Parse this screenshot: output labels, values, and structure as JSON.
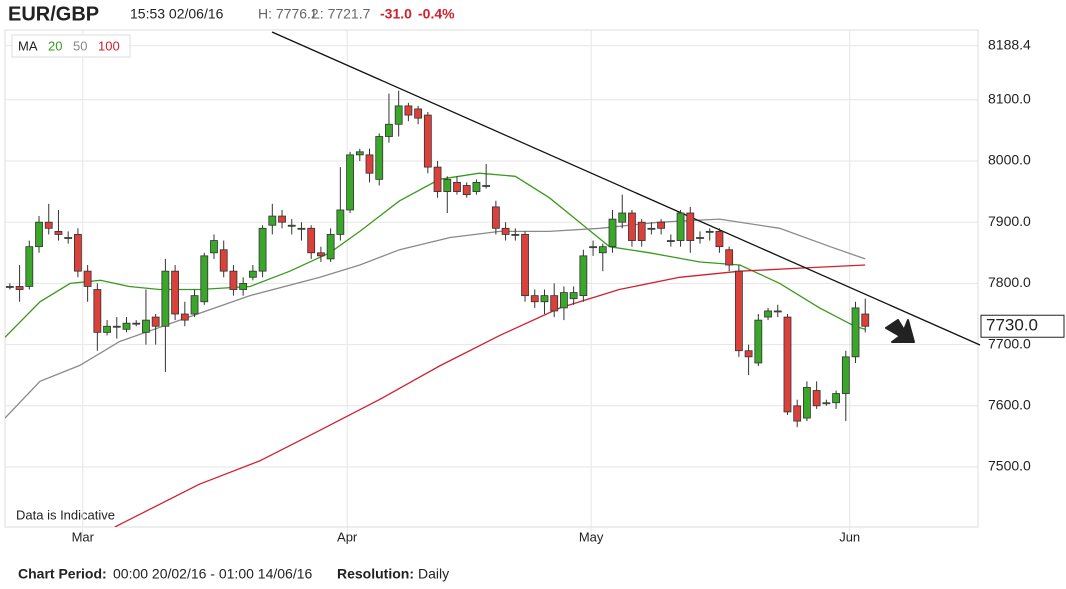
{
  "header": {
    "symbol": "EUR/GBP",
    "time": "15:53 02/06/16",
    "high": "H: 7776.2",
    "low": "L: 7721.7",
    "change": "-31.0",
    "change_pct": "-0.4%"
  },
  "footer": {
    "period_label": "Chart Period:",
    "period": "00:00 20/02/16 - 01:00 14/06/16",
    "resolution_label": "Resolution:",
    "resolution": "Daily"
  },
  "chart_data": {
    "type": "candlestick",
    "annotation": "Data is Indicative",
    "legend_title": "MA",
    "up_color": "#3aa62a",
    "down_color": "#d9413a",
    "xlim": [
      -0.5,
      99.6
    ],
    "xticks": [
      {
        "value": 7.5,
        "label": "Mar"
      },
      {
        "value": 34.7,
        "label": "Apr"
      },
      {
        "value": 59.8,
        "label": "May"
      },
      {
        "value": 86.4,
        "label": "Jun"
      }
    ],
    "ylim": [
      7402,
      8214
    ],
    "yticks": [
      {
        "value": 7500,
        "label": "7500.0"
      },
      {
        "value": 7600,
        "label": "7600.0"
      },
      {
        "value": 7700,
        "label": "7700.0"
      },
      {
        "value": 7800,
        "label": "7800.0"
      },
      {
        "value": 7900,
        "label": "7900.0"
      },
      {
        "value": 8000,
        "label": "8000.0"
      },
      {
        "value": 8100,
        "label": "8100.0"
      },
      8188.4
    ],
    "grid": true,
    "last_price": {
      "value": 7730,
      "label": "7730.0"
    },
    "candles": [
      {
        "open": 7795,
        "high": 7800,
        "low": 7790,
        "close": 7795
      },
      {
        "open": 7795,
        "high": 7830,
        "low": 7770,
        "close": 7790
      },
      {
        "open": 7795,
        "high": 7870,
        "low": 7790,
        "close": 7860
      },
      {
        "open": 7860,
        "high": 7910,
        "low": 7850,
        "close": 7900
      },
      {
        "open": 7900,
        "high": 7930,
        "low": 7880,
        "close": 7890
      },
      {
        "open": 7885,
        "high": 7920,
        "low": 7870,
        "close": 7880
      },
      {
        "open": 7875,
        "high": 7885,
        "low": 7865,
        "close": 7875
      },
      {
        "open": 7880,
        "high": 7890,
        "low": 7810,
        "close": 7820
      },
      {
        "open": 7820,
        "high": 7830,
        "low": 7770,
        "close": 7795
      },
      {
        "open": 7790,
        "high": 7800,
        "low": 7690,
        "close": 7720
      },
      {
        "open": 7720,
        "high": 7740,
        "low": 7715,
        "close": 7730
      },
      {
        "open": 7730,
        "high": 7745,
        "low": 7710,
        "close": 7730
      },
      {
        "open": 7725,
        "high": 7745,
        "low": 7720,
        "close": 7735
      },
      {
        "open": 7735,
        "high": 7740,
        "low": 7730,
        "close": 7735
      },
      {
        "open": 7720,
        "high": 7790,
        "low": 7700,
        "close": 7740
      },
      {
        "open": 7745,
        "high": 7750,
        "low": 7700,
        "close": 7730
      },
      {
        "open": 7730,
        "high": 7840,
        "low": 7655,
        "close": 7820
      },
      {
        "open": 7820,
        "high": 7830,
        "low": 7740,
        "close": 7750
      },
      {
        "open": 7750,
        "high": 7770,
        "low": 7730,
        "close": 7740
      },
      {
        "open": 7750,
        "high": 7790,
        "low": 7745,
        "close": 7780
      },
      {
        "open": 7770,
        "high": 7850,
        "low": 7765,
        "close": 7845
      },
      {
        "open": 7850,
        "high": 7880,
        "low": 7840,
        "close": 7870
      },
      {
        "open": 7855,
        "high": 7870,
        "low": 7810,
        "close": 7820
      },
      {
        "open": 7820,
        "high": 7830,
        "low": 7780,
        "close": 7790
      },
      {
        "open": 7790,
        "high": 7810,
        "low": 7780,
        "close": 7800
      },
      {
        "open": 7810,
        "high": 7830,
        "low": 7805,
        "close": 7820
      },
      {
        "open": 7820,
        "high": 7895,
        "low": 7810,
        "close": 7890
      },
      {
        "open": 7895,
        "high": 7930,
        "low": 7880,
        "close": 7910
      },
      {
        "open": 7910,
        "high": 7920,
        "low": 7890,
        "close": 7900
      },
      {
        "open": 7895,
        "high": 7905,
        "low": 7880,
        "close": 7895
      },
      {
        "open": 7890,
        "high": 7900,
        "low": 7870,
        "close": 7890
      },
      {
        "open": 7890,
        "high": 7895,
        "low": 7840,
        "close": 7850
      },
      {
        "open": 7850,
        "high": 7860,
        "low": 7835,
        "close": 7845
      },
      {
        "open": 7840,
        "high": 7890,
        "low": 7835,
        "close": 7880
      },
      {
        "open": 7880,
        "high": 7990,
        "low": 7870,
        "close": 7920
      },
      {
        "open": 7920,
        "high": 8015,
        "low": 7915,
        "close": 8010
      },
      {
        "open": 8010,
        "high": 8020,
        "low": 8000,
        "close": 8015
      },
      {
        "open": 8010,
        "high": 8020,
        "low": 7965,
        "close": 7980
      },
      {
        "open": 7970,
        "high": 8045,
        "low": 7960,
        "close": 8040
      },
      {
        "open": 8040,
        "high": 8110,
        "low": 8030,
        "close": 8060
      },
      {
        "open": 8060,
        "high": 8115,
        "low": 8040,
        "close": 8090
      },
      {
        "open": 8090,
        "high": 8095,
        "low": 8065,
        "close": 8075
      },
      {
        "open": 8085,
        "high": 8090,
        "low": 8060,
        "close": 8070
      },
      {
        "open": 8075,
        "high": 8080,
        "low": 7980,
        "close": 7990
      },
      {
        "open": 7990,
        "high": 8000,
        "low": 7940,
        "close": 7950
      },
      {
        "open": 7950,
        "high": 7975,
        "low": 7915,
        "close": 7970
      },
      {
        "open": 7965,
        "high": 7975,
        "low": 7945,
        "close": 7950
      },
      {
        "open": 7960,
        "high": 7965,
        "low": 7940,
        "close": 7945
      },
      {
        "open": 7950,
        "high": 7970,
        "low": 7945,
        "close": 7965
      },
      {
        "open": 7960,
        "high": 7995,
        "low": 7955,
        "close": 7960
      },
      {
        "open": 7925,
        "high": 7935,
        "low": 7880,
        "close": 7890
      },
      {
        "open": 7890,
        "high": 7900,
        "low": 7870,
        "close": 7880
      },
      {
        "open": 7880,
        "high": 7890,
        "low": 7870,
        "close": 7880
      },
      {
        "open": 7880,
        "high": 7885,
        "low": 7770,
        "close": 7780
      },
      {
        "open": 7780,
        "high": 7790,
        "low": 7760,
        "close": 7770
      },
      {
        "open": 7770,
        "high": 7790,
        "low": 7750,
        "close": 7780
      },
      {
        "open": 7780,
        "high": 7800,
        "low": 7745,
        "close": 7755
      },
      {
        "open": 7760,
        "high": 7795,
        "low": 7740,
        "close": 7785
      },
      {
        "open": 7775,
        "high": 7795,
        "low": 7765,
        "close": 7785
      },
      {
        "open": 7780,
        "high": 7855,
        "low": 7770,
        "close": 7845
      },
      {
        "open": 7860,
        "high": 7870,
        "low": 7845,
        "close": 7860
      },
      {
        "open": 7850,
        "high": 7865,
        "low": 7820,
        "close": 7860
      },
      {
        "open": 7860,
        "high": 7920,
        "low": 7850,
        "close": 7905
      },
      {
        "open": 7900,
        "high": 7945,
        "low": 7890,
        "close": 7915
      },
      {
        "open": 7915,
        "high": 7920,
        "low": 7860,
        "close": 7870
      },
      {
        "open": 7900,
        "high": 7905,
        "low": 7860,
        "close": 7870
      },
      {
        "open": 7890,
        "high": 7900,
        "low": 7880,
        "close": 7890
      },
      {
        "open": 7900,
        "high": 7905,
        "low": 7880,
        "close": 7890
      },
      {
        "open": 7870,
        "high": 7880,
        "low": 7860,
        "close": 7870
      },
      {
        "open": 7870,
        "high": 7920,
        "low": 7860,
        "close": 7915
      },
      {
        "open": 7915,
        "high": 7925,
        "low": 7850,
        "close": 7870
      },
      {
        "open": 7875,
        "high": 7885,
        "low": 7865,
        "close": 7875
      },
      {
        "open": 7885,
        "high": 7890,
        "low": 7870,
        "close": 7885
      },
      {
        "open": 7885,
        "high": 7890,
        "low": 7850,
        "close": 7860
      },
      {
        "open": 7855,
        "high": 7860,
        "low": 7820,
        "close": 7830
      },
      {
        "open": 7820,
        "high": 7830,
        "low": 7680,
        "close": 7690
      },
      {
        "open": 7690,
        "high": 7700,
        "low": 7650,
        "close": 7680
      },
      {
        "open": 7670,
        "high": 7750,
        "low": 7665,
        "close": 7740
      },
      {
        "open": 7745,
        "high": 7760,
        "low": 7740,
        "close": 7755
      },
      {
        "open": 7755,
        "high": 7765,
        "low": 7745,
        "close": 7755
      },
      {
        "open": 7745,
        "high": 7750,
        "low": 7585,
        "close": 7590
      },
      {
        "open": 7600,
        "high": 7610,
        "low": 7565,
        "close": 7575
      },
      {
        "open": 7580,
        "high": 7640,
        "low": 7575,
        "close": 7630
      },
      {
        "open": 7625,
        "high": 7640,
        "low": 7595,
        "close": 7600
      },
      {
        "open": 7605,
        "high": 7610,
        "low": 7600,
        "close": 7605
      },
      {
        "open": 7605,
        "high": 7625,
        "low": 7595,
        "close": 7620
      },
      {
        "open": 7620,
        "high": 7690,
        "low": 7575,
        "close": 7680
      },
      {
        "open": 7680,
        "high": 7770,
        "low": 7670,
        "close": 7760
      },
      {
        "open": 7750,
        "high": 7775,
        "low": 7720,
        "close": 7730
      }
    ],
    "series": [
      {
        "name": "20",
        "color": "#3a9a1e",
        "x": [
          -0.5,
          3.1,
          6.2,
          9.3,
          12.3,
          15.4,
          19.5,
          24.7,
          28.8,
          32.9,
          36,
          40.1,
          44.2,
          48.3,
          52,
          55.5,
          58.6,
          61.7,
          65.8,
          71,
          75.1,
          79.2,
          83.3,
          86.9,
          88
        ],
        "values": [
          7712,
          7770,
          7800,
          7805,
          7795,
          7790,
          7790,
          7795,
          7820,
          7850,
          7885,
          7935,
          7970,
          7980,
          7975,
          7940,
          7900,
          7860,
          7850,
          7835,
          7830,
          7800,
          7760,
          7730,
          7725
        ]
      },
      {
        "name": "50",
        "color": "#8a8a8a",
        "x": [
          -0.5,
          3.1,
          7.2,
          11.3,
          17.5,
          24.7,
          31.9,
          36,
          40.1,
          45.3,
          50.4,
          55.5,
          60.7,
          66.8,
          73,
          79.2,
          84.4,
          88
        ],
        "values": [
          7580,
          7640,
          7666,
          7705,
          7740,
          7780,
          7810,
          7830,
          7855,
          7875,
          7885,
          7885,
          7890,
          7900,
          7905,
          7890,
          7860,
          7840
        ]
      },
      {
        "name": "100",
        "color": "#d0202e",
        "x": [
          10.8,
          19.5,
          25.7,
          31.9,
          38,
          44.2,
          50.4,
          56.6,
          62.7,
          68.9,
          75.1,
          81.3,
          88
        ],
        "values": [
          7402,
          7472,
          7510,
          7560,
          7610,
          7665,
          7715,
          7760,
          7790,
          7810,
          7820,
          7825,
          7830
        ]
      }
    ]
  }
}
